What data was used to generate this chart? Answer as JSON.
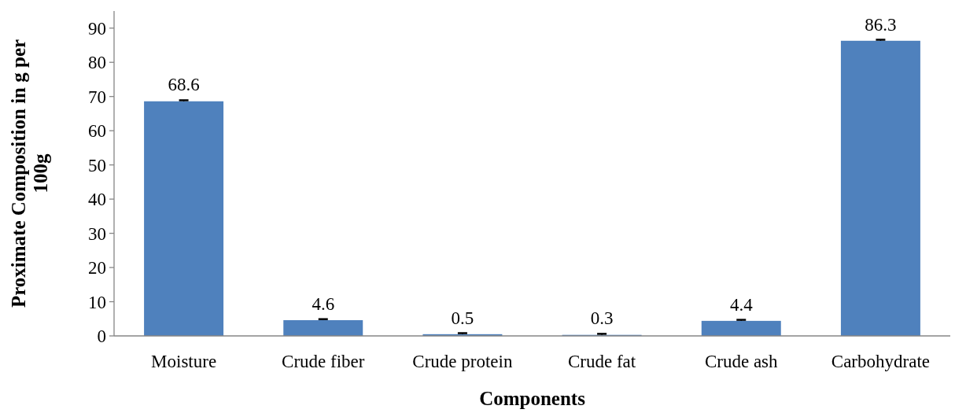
{
  "chart_data": {
    "type": "bar",
    "xlabel": "Components",
    "ylabel": "Proximate Composition in g per 100g",
    "categories": [
      "Moisture",
      "Crude fiber",
      "Crude protein",
      "Crude fat",
      "Crude ash",
      "Carbohydrate"
    ],
    "values": [
      68.6,
      4.6,
      0.5,
      0.3,
      4.4,
      86.3
    ],
    "errors": [
      [
        68.6,
        68.9
      ],
      [
        4.6,
        4.9
      ],
      [
        0.5,
        0.8
      ],
      [
        0.3,
        0.6
      ],
      [
        4.4,
        4.7
      ],
      [
        86.3,
        86.6
      ]
    ],
    "color": "#4f81bd",
    "ylim": [
      0,
      95
    ],
    "yticks": [
      0,
      10,
      20,
      30,
      40,
      50,
      60,
      70,
      80,
      90
    ],
    "grid": false,
    "data_labels": true
  }
}
